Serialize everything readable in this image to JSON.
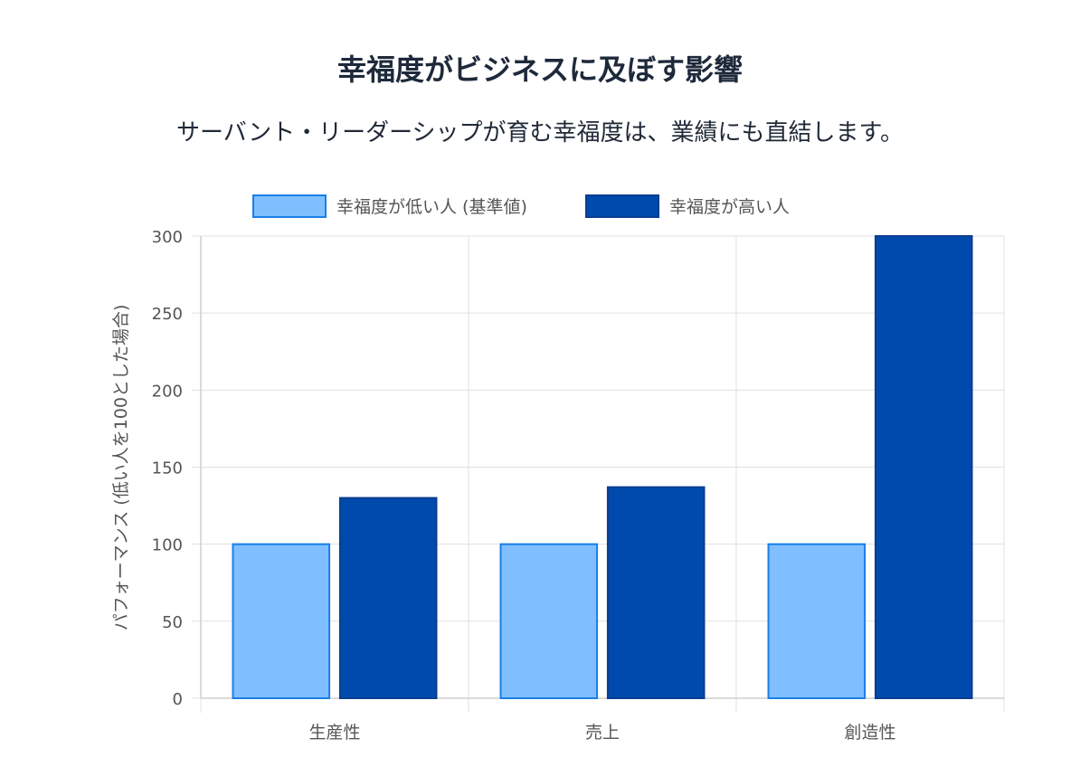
{
  "header": {
    "title": "幸福度がビジネスに及ぼす影響",
    "subtitle": "サーバント・リーダーシップが育む幸福度は、業績にも直結します。"
  },
  "chart_data": {
    "type": "bar",
    "categories": [
      "生産性",
      "売上",
      "創造性"
    ],
    "series": [
      {
        "name": "幸福度が低い人 (基準値)",
        "values": [
          100,
          100,
          100
        ],
        "fill": "#7fbfff",
        "stroke": "#1a7fe8"
      },
      {
        "name": "幸福度が高い人",
        "values": [
          130,
          137,
          300
        ],
        "fill": "#004aad",
        "stroke": "#0a3d91"
      }
    ],
    "ylabel": "パフォーマンス (低い人を100とした場合)",
    "xlabel": "",
    "ylim": [
      0,
      300
    ],
    "yticks": [
      "0",
      "50",
      "100",
      "150",
      "200",
      "250",
      "300"
    ],
    "grid": true,
    "legend": "top-center",
    "gridColor": "#e0e0e0"
  }
}
